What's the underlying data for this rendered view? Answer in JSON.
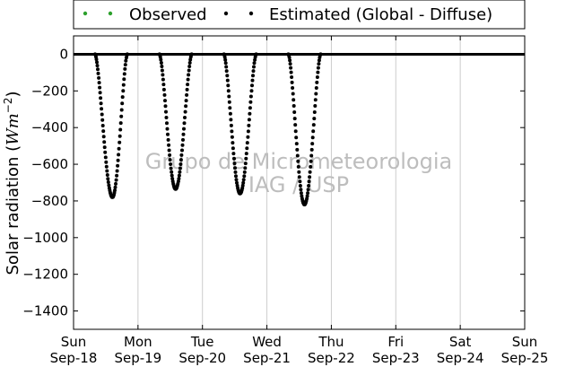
{
  "chart_data": {
    "type": "scatter",
    "title": "",
    "xlabel": "",
    "ylabel": "Solar radiation (Wm^-2)",
    "ylabel_parts": {
      "main": "Solar radiation (",
      "unit": "Wm",
      "exponent": "−2",
      "close": ")"
    },
    "ylim": [
      -1500,
      100
    ],
    "xlim_days": [
      0,
      7
    ],
    "grid": "vertical",
    "legend_position": "top",
    "yticks": [
      0,
      -200,
      -400,
      -600,
      -800,
      -1000,
      -1200,
      -1400
    ],
    "xticks": [
      {
        "day": "Sun",
        "date": "Sep-18"
      },
      {
        "day": "Mon",
        "date": "Sep-19"
      },
      {
        "day": "Tue",
        "date": "Sep-20"
      },
      {
        "day": "Wed",
        "date": "Sep-21"
      },
      {
        "day": "Thu",
        "date": "Sep-22"
      },
      {
        "day": "Fri",
        "date": "Sep-23"
      },
      {
        "day": "Sat",
        "date": "Sep-24"
      },
      {
        "day": "Sun",
        "date": "Sep-25"
      }
    ],
    "series": [
      {
        "name": "Observed",
        "color": "#2ca02c",
        "marker": "dot"
      },
      {
        "name": "Estimated (Global - Diffuse)",
        "color": "#000000",
        "marker": "dot",
        "daily_curves": [
          {
            "date": "Sep-18",
            "start": "08:00",
            "end": "20:00",
            "minimum": -780,
            "minimum_time": "14:30"
          },
          {
            "date": "Sep-19",
            "start": "08:00",
            "end": "20:00",
            "minimum": -735,
            "minimum_time": "14:00"
          },
          {
            "date": "Sep-20",
            "start": "08:00",
            "end": "20:00",
            "minimum": -760,
            "minimum_time": "14:00"
          },
          {
            "date": "Sep-21",
            "start": "08:00",
            "end": "20:00",
            "minimum": -820,
            "minimum_time": "14:00"
          }
        ]
      }
    ],
    "baseline_value": 0,
    "watermark": [
      "Grupo de Micrometeorologia",
      "IAG / USP"
    ]
  }
}
